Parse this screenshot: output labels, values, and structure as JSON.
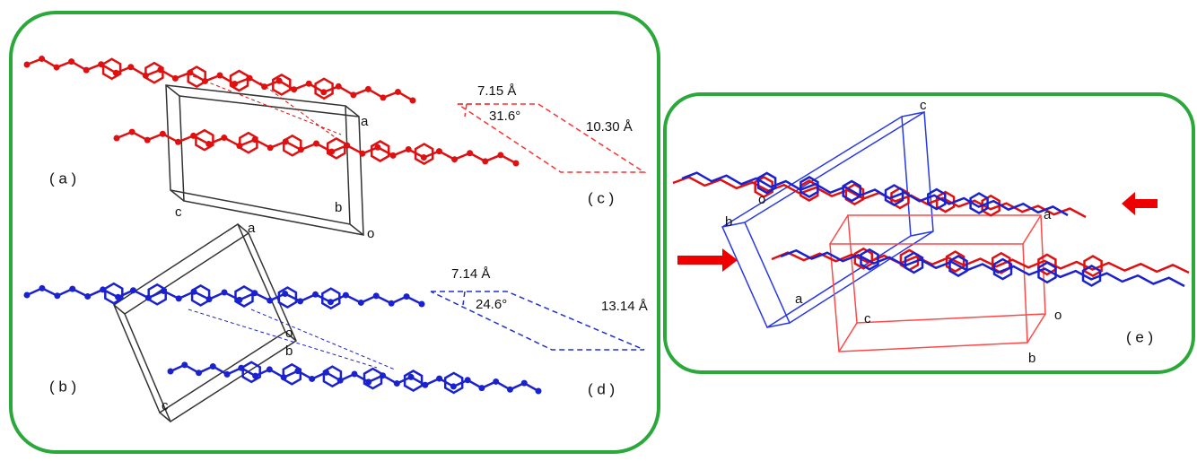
{
  "panel_labels": [
    "( a )",
    "( b )",
    "( c )",
    "( d )",
    "( e )"
  ],
  "cell_a": {
    "a": "a",
    "b": "b",
    "c": "c",
    "o": "o"
  },
  "cell_b": {
    "a": "a",
    "b": "b",
    "c": "c",
    "o": "o"
  },
  "cell_e_blue": {
    "a": "a",
    "b": "b",
    "c": "c",
    "o": "o"
  },
  "cell_e_red": {
    "a": "a",
    "b": "b",
    "c": "c",
    "o": "o"
  },
  "measure_c": {
    "short": "7.15 Å",
    "angle": "31.6°",
    "long": "10.30 Å"
  },
  "measure_d": {
    "short": "7.14 Å",
    "angle": "24.6°",
    "long": "13.14 Å"
  }
}
